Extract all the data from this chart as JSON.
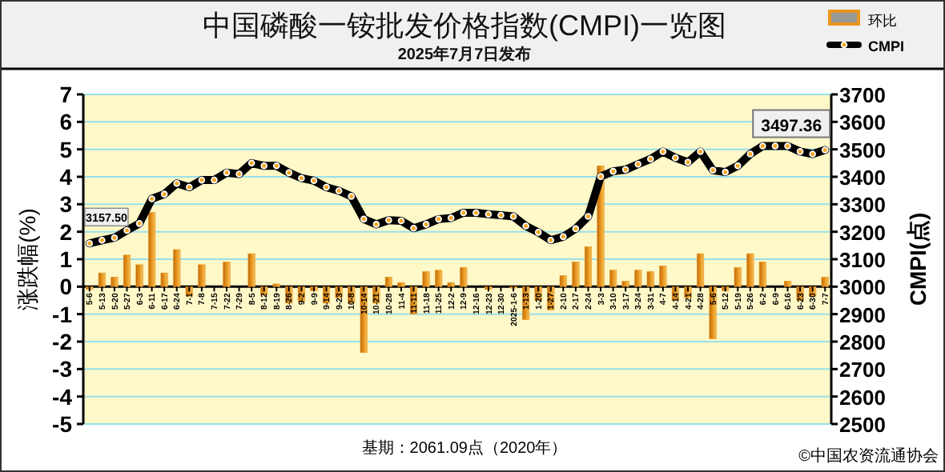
{
  "chart_data": {
    "type": "bar",
    "title": "中国磷酸一铵批发价格指数(CMPI)一览图",
    "subtitle": "2025年7月7日发布",
    "ylabel": "涨跌幅(%)",
    "y2label": "CMPI(点)",
    "categories": [
      "5-6",
      "5-13",
      "5-20",
      "5-27",
      "6-3",
      "6-11",
      "6-17",
      "6-24",
      "7-1",
      "7-8",
      "7-15",
      "7-22",
      "7-29",
      "8-5",
      "8-12",
      "8-19",
      "8-26",
      "9-2",
      "9-9",
      "9-14",
      "9-23",
      "10-8",
      "10-14",
      "10-21",
      "10-28",
      "11-4",
      "11-11",
      "11-18",
      "11-25",
      "12-2",
      "12-9",
      "12-16",
      "12-23",
      "12-30",
      "2025-1-6",
      "1-13",
      "1-20",
      "1-27",
      "2-10",
      "2-17",
      "2-24",
      "3-3",
      "3-10",
      "3-17",
      "3-24",
      "3-31",
      "4-7",
      "4-14",
      "4-21",
      "4-28",
      "5-6",
      "5-12",
      "5-19",
      "5-26",
      "6-2",
      "6-9",
      "6-16",
      "6-23",
      "6-30",
      "7-7"
    ],
    "series": [
      {
        "name": "环比",
        "color": "#e8961c",
        "values": [
          -0.1,
          0.5,
          0.35,
          1.15,
          0.8,
          2.7,
          0.5,
          1.35,
          -0.35,
          0.8,
          0,
          0.9,
          0,
          1.2,
          -0.3,
          0.1,
          -0.6,
          -0.55,
          -0.15,
          -0.6,
          -0.4,
          -0.6,
          -2.4,
          -0.6,
          0.35,
          0.15,
          -1.0,
          0.55,
          0.6,
          0.15,
          0.7,
          0,
          -0.1,
          0,
          -0.05,
          -1.2,
          -0.5,
          -0.85,
          0.4,
          0.9,
          1.45,
          4.4,
          0.6,
          0.2,
          0.6,
          0.55,
          0.75,
          -0.5,
          -0.4,
          1.2,
          -1.9,
          -0.15,
          0.7,
          1.2,
          0.9,
          0,
          0.2,
          -0.5,
          -0.35,
          0.35
        ]
      },
      {
        "name": "CMPI",
        "type": "line",
        "axis": "y2",
        "color": "#000000",
        "values": [
          3157.5,
          3169,
          3178,
          3205,
          3230,
          3320,
          3337,
          3376,
          3362,
          3388,
          3388,
          3415,
          3410,
          3450,
          3440,
          3440,
          3415,
          3395,
          3386,
          3362,
          3349,
          3329,
          3246,
          3227,
          3242,
          3240,
          3213,
          3227,
          3246,
          3250,
          3269,
          3269,
          3264,
          3260,
          3256,
          3221,
          3198,
          3169,
          3182,
          3211,
          3256,
          3401,
          3420,
          3426,
          3446,
          3465,
          3492,
          3469,
          3453,
          3492,
          3424,
          3417,
          3440,
          3483,
          3512,
          3512,
          3512,
          3492,
          3483,
          3497.36
        ],
        "value_labels": [
          "3157.50",
          null,
          null,
          null,
          null,
          null,
          null,
          null,
          null,
          null,
          null,
          null,
          null,
          null,
          null,
          null,
          null,
          null,
          null,
          null,
          null,
          null,
          null,
          null,
          null,
          null,
          null,
          null,
          null,
          null,
          null,
          null,
          null,
          null,
          null,
          null,
          null,
          null,
          null,
          null,
          null,
          null,
          null,
          null,
          null,
          null,
          null,
          null,
          null,
          null,
          null,
          null,
          null,
          null,
          null,
          null,
          null,
          null,
          null,
          "3497.36"
        ]
      }
    ],
    "ylim": [
      -5,
      7
    ],
    "yticks": [
      -5,
      -4,
      -3,
      -2,
      -1,
      0,
      1,
      2,
      3,
      4,
      5,
      6,
      7
    ],
    "y2lim": [
      2500,
      3700
    ],
    "y2ticks": [
      2500,
      2600,
      2700,
      2800,
      2900,
      3000,
      3100,
      3200,
      3300,
      3400,
      3500,
      3600,
      3700
    ],
    "grid": "y",
    "legend": "top right",
    "marker": "circle",
    "annotations": [
      "基期：2061.09点（2020年）",
      "©中国农资流通协会"
    ]
  }
}
